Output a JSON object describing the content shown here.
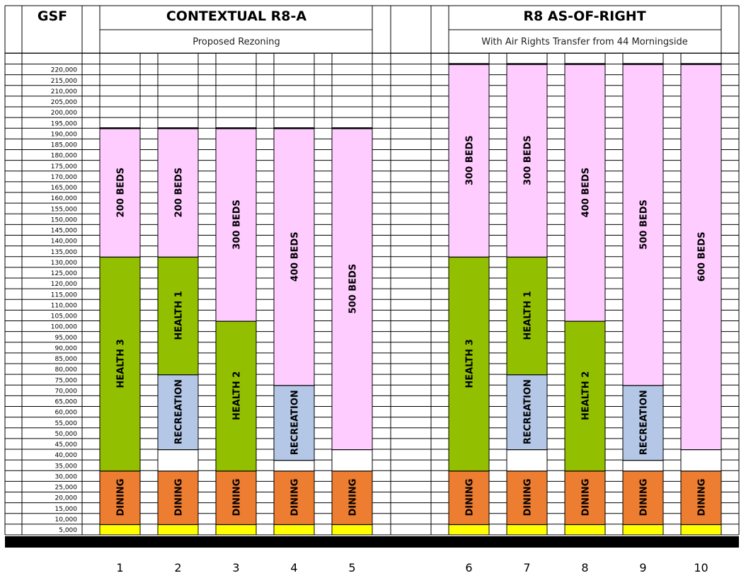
{
  "header": {
    "left_title": "GSF",
    "group_a": {
      "title": "CONTEXTUAL R8-A",
      "subtitle": "Proposed Rezoning"
    },
    "group_b": {
      "title": "R8 AS-OF-RIGHT",
      "subtitle": "With Air Rights Transfer from 44 Morningside"
    }
  },
  "chart_data": {
    "type": "bar",
    "stacked": true,
    "orientation": "vertical",
    "ylim": [
      0,
      222500
    ],
    "y_ticks": [
      "5,000",
      "10,000",
      "15,000",
      "20,000",
      "25,000",
      "30,000",
      "35,000",
      "40,000",
      "45,000",
      "50,000",
      "55,000",
      "60,000",
      "65,000",
      "70,000",
      "75,000",
      "80,000",
      "85,000",
      "90,000",
      "95,000",
      "100,000",
      "105,000",
      "110,000",
      "115,000",
      "120,000",
      "125,000",
      "130,000",
      "135,000",
      "140,000",
      "145,000",
      "150,000",
      "155,000",
      "160,000",
      "165,000",
      "170,000",
      "175,000",
      "180,000",
      "185,000",
      "190,000",
      "195,000",
      "200,000",
      "205,000",
      "210,000",
      "215,000",
      "220,000"
    ],
    "colors": {
      "base": "#ffff00",
      "dining": "#ed7d31",
      "recreation": "#b4c7e7",
      "health": "#92c000",
      "beds": "#ffccff",
      "empty": "#ffffff"
    },
    "categories": [
      "1",
      "2",
      "3",
      "4",
      "5",
      "6",
      "7",
      "8",
      "9",
      "10"
    ],
    "columns": [
      {
        "label": "1",
        "segments": [
          {
            "kind": "base",
            "start": 0,
            "end": 5000,
            "label": ""
          },
          {
            "kind": "dining",
            "start": 5000,
            "end": 30000,
            "label": "DINING"
          },
          {
            "kind": "health",
            "start": 30000,
            "end": 130000,
            "label": "HEALTH 3"
          },
          {
            "kind": "beds",
            "start": 130000,
            "end": 190000,
            "label": "200 BEDS"
          }
        ]
      },
      {
        "label": "2",
        "segments": [
          {
            "kind": "base",
            "start": 0,
            "end": 5000,
            "label": ""
          },
          {
            "kind": "dining",
            "start": 5000,
            "end": 30000,
            "label": "DINING"
          },
          {
            "kind": "empty",
            "start": 30000,
            "end": 40000,
            "label": ""
          },
          {
            "kind": "recreation",
            "start": 40000,
            "end": 75000,
            "label": "RECREATION"
          },
          {
            "kind": "health",
            "start": 75000,
            "end": 130000,
            "label": "HEALTH 1"
          },
          {
            "kind": "beds",
            "start": 130000,
            "end": 190000,
            "label": "200 BEDS"
          }
        ]
      },
      {
        "label": "3",
        "segments": [
          {
            "kind": "base",
            "start": 0,
            "end": 5000,
            "label": ""
          },
          {
            "kind": "dining",
            "start": 5000,
            "end": 30000,
            "label": "DINING"
          },
          {
            "kind": "health",
            "start": 30000,
            "end": 100000,
            "label": "HEALTH 2"
          },
          {
            "kind": "beds",
            "start": 100000,
            "end": 190000,
            "label": "300 BEDS"
          }
        ]
      },
      {
        "label": "4",
        "segments": [
          {
            "kind": "base",
            "start": 0,
            "end": 5000,
            "label": ""
          },
          {
            "kind": "dining",
            "start": 5000,
            "end": 30000,
            "label": "DINING"
          },
          {
            "kind": "empty",
            "start": 30000,
            "end": 35000,
            "label": ""
          },
          {
            "kind": "recreation",
            "start": 35000,
            "end": 70000,
            "label": "RECREATION"
          },
          {
            "kind": "beds",
            "start": 70000,
            "end": 190000,
            "label": "400 BEDS"
          }
        ]
      },
      {
        "label": "5",
        "segments": [
          {
            "kind": "base",
            "start": 0,
            "end": 5000,
            "label": ""
          },
          {
            "kind": "dining",
            "start": 5000,
            "end": 30000,
            "label": "DINING"
          },
          {
            "kind": "empty",
            "start": 30000,
            "end": 40000,
            "label": ""
          },
          {
            "kind": "beds",
            "start": 40000,
            "end": 190000,
            "label": "500 BEDS"
          }
        ]
      },
      {
        "label": "6",
        "segments": [
          {
            "kind": "base",
            "start": 0,
            "end": 5000,
            "label": ""
          },
          {
            "kind": "dining",
            "start": 5000,
            "end": 30000,
            "label": "DINING"
          },
          {
            "kind": "health",
            "start": 30000,
            "end": 130000,
            "label": "HEALTH 3"
          },
          {
            "kind": "beds",
            "start": 130000,
            "end": 220000,
            "label": "300 BEDS"
          }
        ]
      },
      {
        "label": "7",
        "segments": [
          {
            "kind": "base",
            "start": 0,
            "end": 5000,
            "label": ""
          },
          {
            "kind": "dining",
            "start": 5000,
            "end": 30000,
            "label": "DINING"
          },
          {
            "kind": "empty",
            "start": 30000,
            "end": 40000,
            "label": ""
          },
          {
            "kind": "recreation",
            "start": 40000,
            "end": 75000,
            "label": "RECREATION"
          },
          {
            "kind": "health",
            "start": 75000,
            "end": 130000,
            "label": "HEALTH 1"
          },
          {
            "kind": "beds",
            "start": 130000,
            "end": 220000,
            "label": "300 BEDS"
          }
        ]
      },
      {
        "label": "8",
        "segments": [
          {
            "kind": "base",
            "start": 0,
            "end": 5000,
            "label": ""
          },
          {
            "kind": "dining",
            "start": 5000,
            "end": 30000,
            "label": "DINING"
          },
          {
            "kind": "health",
            "start": 30000,
            "end": 100000,
            "label": "HEALTH 2"
          },
          {
            "kind": "beds",
            "start": 100000,
            "end": 220000,
            "label": "400 BEDS"
          }
        ]
      },
      {
        "label": "9",
        "segments": [
          {
            "kind": "base",
            "start": 0,
            "end": 5000,
            "label": ""
          },
          {
            "kind": "dining",
            "start": 5000,
            "end": 30000,
            "label": "DINING"
          },
          {
            "kind": "empty",
            "start": 30000,
            "end": 35000,
            "label": ""
          },
          {
            "kind": "recreation",
            "start": 35000,
            "end": 70000,
            "label": "RECREATION"
          },
          {
            "kind": "beds",
            "start": 70000,
            "end": 220000,
            "label": "500 BEDS"
          }
        ]
      },
      {
        "label": "10",
        "segments": [
          {
            "kind": "base",
            "start": 0,
            "end": 5000,
            "label": ""
          },
          {
            "kind": "dining",
            "start": 5000,
            "end": 30000,
            "label": "DINING"
          },
          {
            "kind": "empty",
            "start": 30000,
            "end": 40000,
            "label": ""
          },
          {
            "kind": "beds",
            "start": 40000,
            "end": 220000,
            "label": "600 BEDS"
          }
        ]
      }
    ]
  }
}
